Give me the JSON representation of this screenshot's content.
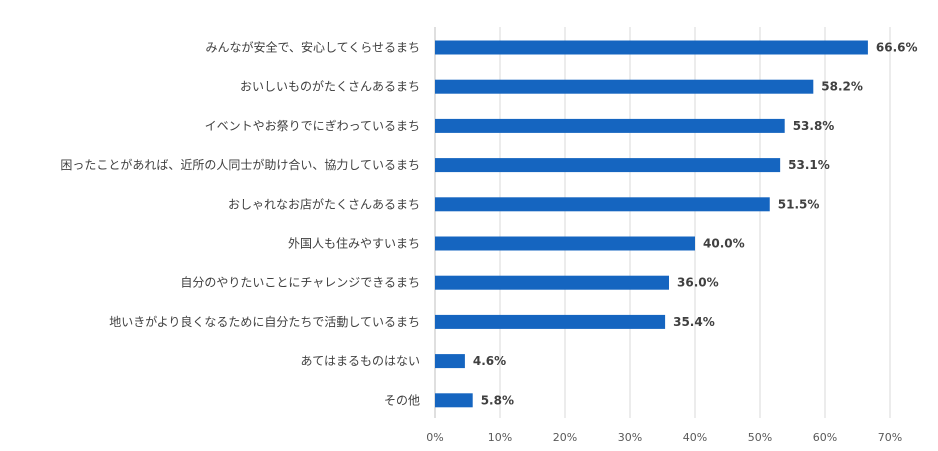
{
  "chart_data": {
    "type": "bar",
    "orientation": "horizontal",
    "categories": [
      "みんなが安全で、安心してくらせるまち",
      "おいしいものがたくさんあるまち",
      "イベントやお祭りでにぎわっているまち",
      "困ったことがあれば、近所の人同士が助け合い、協力しているまち",
      "おしゃれなお店がたくさんあるまち",
      "外国人も住みやすいまち",
      "自分のやりたいことにチャレンジできるまち",
      "地いきがより良くなるために自分たちで活動しているまち",
      "あてはまるものはない",
      "その他"
    ],
    "values": [
      66.6,
      58.2,
      53.8,
      53.1,
      51.5,
      40.0,
      36.0,
      35.4,
      4.6,
      5.8
    ],
    "value_labels": [
      "66.6%",
      "58.2%",
      "53.8%",
      "53.1%",
      "51.5%",
      "40.0%",
      "36.0%",
      "35.4%",
      "4.6%",
      "5.8%"
    ],
    "x_ticks": [
      0,
      10,
      20,
      30,
      40,
      50,
      60,
      70
    ],
    "x_tick_labels": [
      "0%",
      "10%",
      "20%",
      "30%",
      "40%",
      "50%",
      "60%",
      "70%"
    ],
    "xlim": [
      0,
      70
    ],
    "grid": true,
    "bar_color": "#1565c0"
  }
}
